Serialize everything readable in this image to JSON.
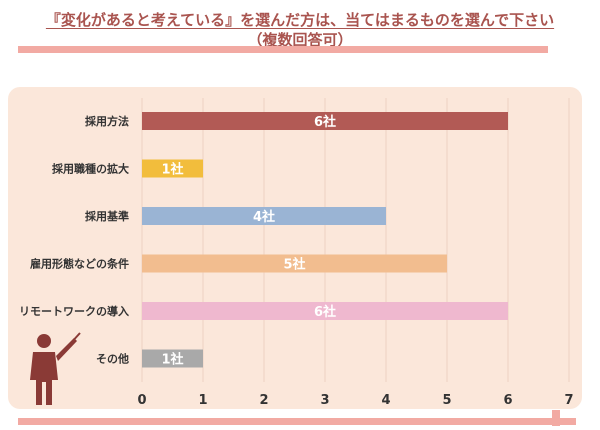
{
  "header": {
    "title_line1": "『変化があると考えている』を選んだ方は、当てはまるものを選んで下さい",
    "title_line2": "（複数回答可）"
  },
  "colors": {
    "panel_bg": "#fbe7da",
    "deco_bar": "#f2aaa3",
    "title": "#a9544f",
    "grid": "#ecd2c3",
    "axis_label": "#333333",
    "value_label": "#ffffff"
  },
  "icons": {
    "presenter": "presenter-icon"
  },
  "chart_data": {
    "type": "bar",
    "orientation": "horizontal",
    "categories": [
      "採用方法",
      "採用職種の拡大",
      "採用基準",
      "雇用形態などの条件",
      "リモートワークの導入",
      "その他"
    ],
    "values": [
      6,
      1,
      4,
      5,
      6,
      1
    ],
    "data_labels": [
      "6社",
      "1社",
      "4社",
      "5社",
      "6社",
      "1社"
    ],
    "bar_colors": [
      "#b25a55",
      "#f2bd3c",
      "#9ab4d4",
      "#f2bd8f",
      "#efb8cf",
      "#a9a9a9"
    ],
    "x_ticks": [
      0,
      1,
      2,
      3,
      4,
      5,
      6,
      7
    ],
    "xlim": [
      0,
      7
    ],
    "grid": true,
    "legend": "none"
  }
}
